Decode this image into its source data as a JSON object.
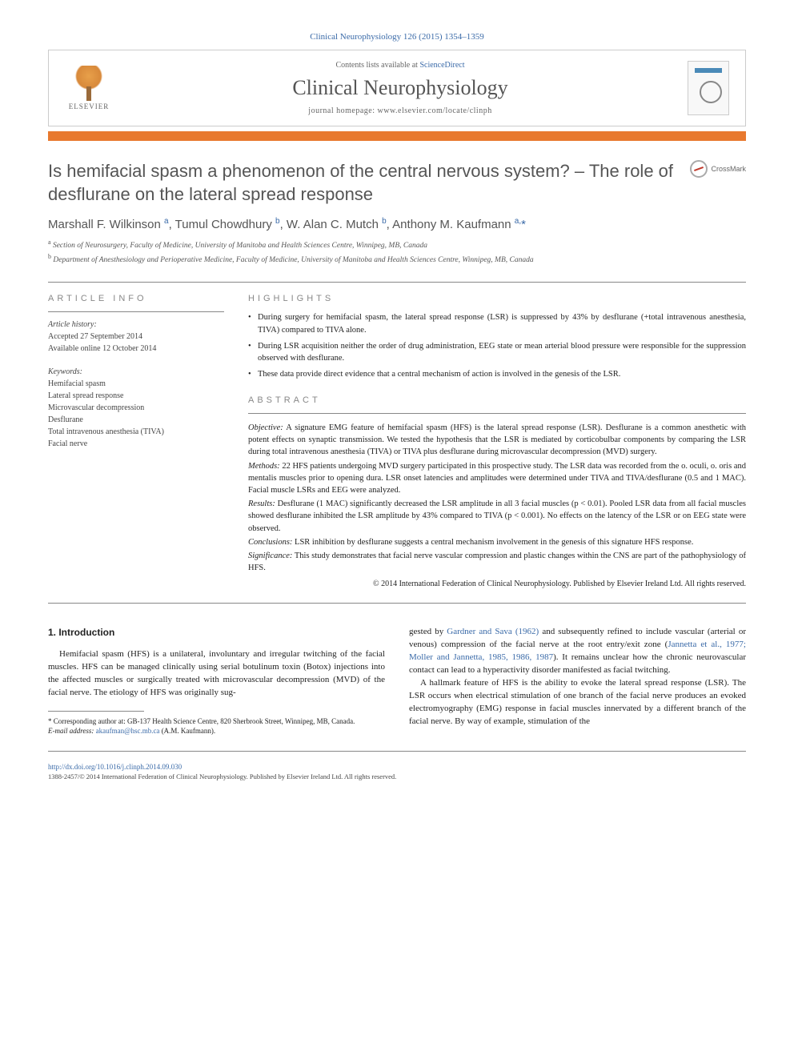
{
  "citation": "Clinical Neurophysiology 126 (2015) 1354–1359",
  "header": {
    "contents_prefix": "Contents lists available at ",
    "contents_link": "ScienceDirect",
    "journal": "Clinical Neurophysiology",
    "homepage_prefix": "journal homepage: ",
    "homepage": "www.elsevier.com/locate/clinph",
    "publisher_name": "ELSEVIER"
  },
  "colors": {
    "accent_bar": "#e8792e",
    "link": "#3a6aa8",
    "text_gray": "#555555"
  },
  "crossmark_label": "CrossMark",
  "title": "Is hemifacial spasm a phenomenon of the central nervous system? – The role of desflurane on the lateral spread response",
  "authors_html": "Marshall F. Wilkinson <sup>a</sup>, Tumul Chowdhury <sup>b</sup>, W. Alan C. Mutch <sup>b</sup>, Anthony M. Kaufmann <sup>a,</sup><span class='ast'>*</span>",
  "affiliations": [
    "a Section of Neurosurgery, Faculty of Medicine, University of Manitoba and Health Sciences Centre, Winnipeg, MB, Canada",
    "b Department of Anesthesiology and Perioperative Medicine, Faculty of Medicine, University of Manitoba and Health Sciences Centre, Winnipeg, MB, Canada"
  ],
  "article_info": {
    "heading": "ARTICLE INFO",
    "history_label": "Article history:",
    "accepted": "Accepted 27 September 2014",
    "online": "Available online 12 October 2014",
    "keywords_label": "Keywords:",
    "keywords": [
      "Hemifacial spasm",
      "Lateral spread response",
      "Microvascular decompression",
      "Desflurane",
      "Total intravenous anesthesia (TIVA)",
      "Facial nerve"
    ]
  },
  "highlights_heading": "HIGHLIGHTS",
  "highlights": [
    "During surgery for hemifacial spasm, the lateral spread response (LSR) is suppressed by 43% by desflurane (+total intravenous anesthesia, TIVA) compared to TIVA alone.",
    "During LSR acquisition neither the order of drug administration, EEG state or mean arterial blood pressure were responsible for the suppression observed with desflurane.",
    "These data provide direct evidence that a central mechanism of action is involved in the genesis of the LSR."
  ],
  "abstract_heading": "ABSTRACT",
  "abstract": {
    "objective_label": "Objective:",
    "objective": " A signature EMG feature of hemifacial spasm (HFS) is the lateral spread response (LSR). Desflurane is a common anesthetic with potent effects on synaptic transmission. We tested the hypothesis that the LSR is mediated by corticobulbar components by comparing the LSR during total intravenous anesthesia (TIVA) or TIVA plus desflurane during microvascular decompression (MVD) surgery.",
    "methods_label": "Methods:",
    "methods": " 22 HFS patients undergoing MVD surgery participated in this prospective study. The LSR data was recorded from the o. oculi, o. oris and mentalis muscles prior to opening dura. LSR onset latencies and amplitudes were determined under TIVA and TIVA/desflurane (0.5 and 1 MAC). Facial muscle LSRs and EEG were analyzed.",
    "results_label": "Results:",
    "results": " Desflurane (1 MAC) significantly decreased the LSR amplitude in all 3 facial muscles (p < 0.01). Pooled LSR data from all facial muscles showed desflurane inhibited the LSR amplitude by 43% compared to TIVA (p < 0.001). No effects on the latency of the LSR or on EEG state were observed.",
    "conclusions_label": "Conclusions:",
    "conclusions": " LSR inhibition by desflurane suggests a central mechanism involvement in the genesis of this signature HFS response.",
    "significance_label": "Significance:",
    "significance": " This study demonstrates that facial nerve vascular compression and plastic changes within the CNS are part of the pathophysiology of HFS.",
    "copyright": "© 2014 International Federation of Clinical Neurophysiology. Published by Elsevier Ireland Ltd. All rights reserved."
  },
  "body": {
    "section_heading": "1. Introduction",
    "left_para": "Hemifacial spasm (HFS) is a unilateral, involuntary and irregular twitching of the facial muscles. HFS can be managed clinically using serial botulinum toxin (Botox) injections into the affected muscles or surgically treated with microvascular decompression (MVD) of the facial nerve. The etiology of HFS was originally sug-",
    "right_para_1_pre": "gested by ",
    "right_ref_1": "Gardner and Sava (1962)",
    "right_para_1_mid": " and subsequently refined to include vascular (arterial or venous) compression of the facial nerve at the root entry/exit zone (",
    "right_ref_2": "Jannetta et al., 1977; Moller and Jannetta, 1985, 1986, 1987",
    "right_para_1_post": "). It remains unclear how the chronic neurovascular contact can lead to a hyperactivity disorder manifested as facial twitching.",
    "right_para_2": "A hallmark feature of HFS is the ability to evoke the lateral spread response (LSR). The LSR occurs when electrical stimulation of one branch of the facial nerve produces an evoked electromyography (EMG) response in facial muscles innervated by a different branch of the facial nerve. By way of example, stimulation of the"
  },
  "footnote": {
    "corr_label": "* Corresponding author at: ",
    "corr_text": "GB-137 Health Science Centre, 820 Sherbrook Street, Winnipeg, MB, Canada.",
    "email_label": "E-mail address: ",
    "email": "akaufman@hsc.mb.ca",
    "email_person": " (A.M. Kaufmann)."
  },
  "doi": "http://dx.doi.org/10.1016/j.clinph.2014.09.030",
  "issn_line": "1388-2457/© 2014 International Federation of Clinical Neurophysiology. Published by Elsevier Ireland Ltd. All rights reserved."
}
